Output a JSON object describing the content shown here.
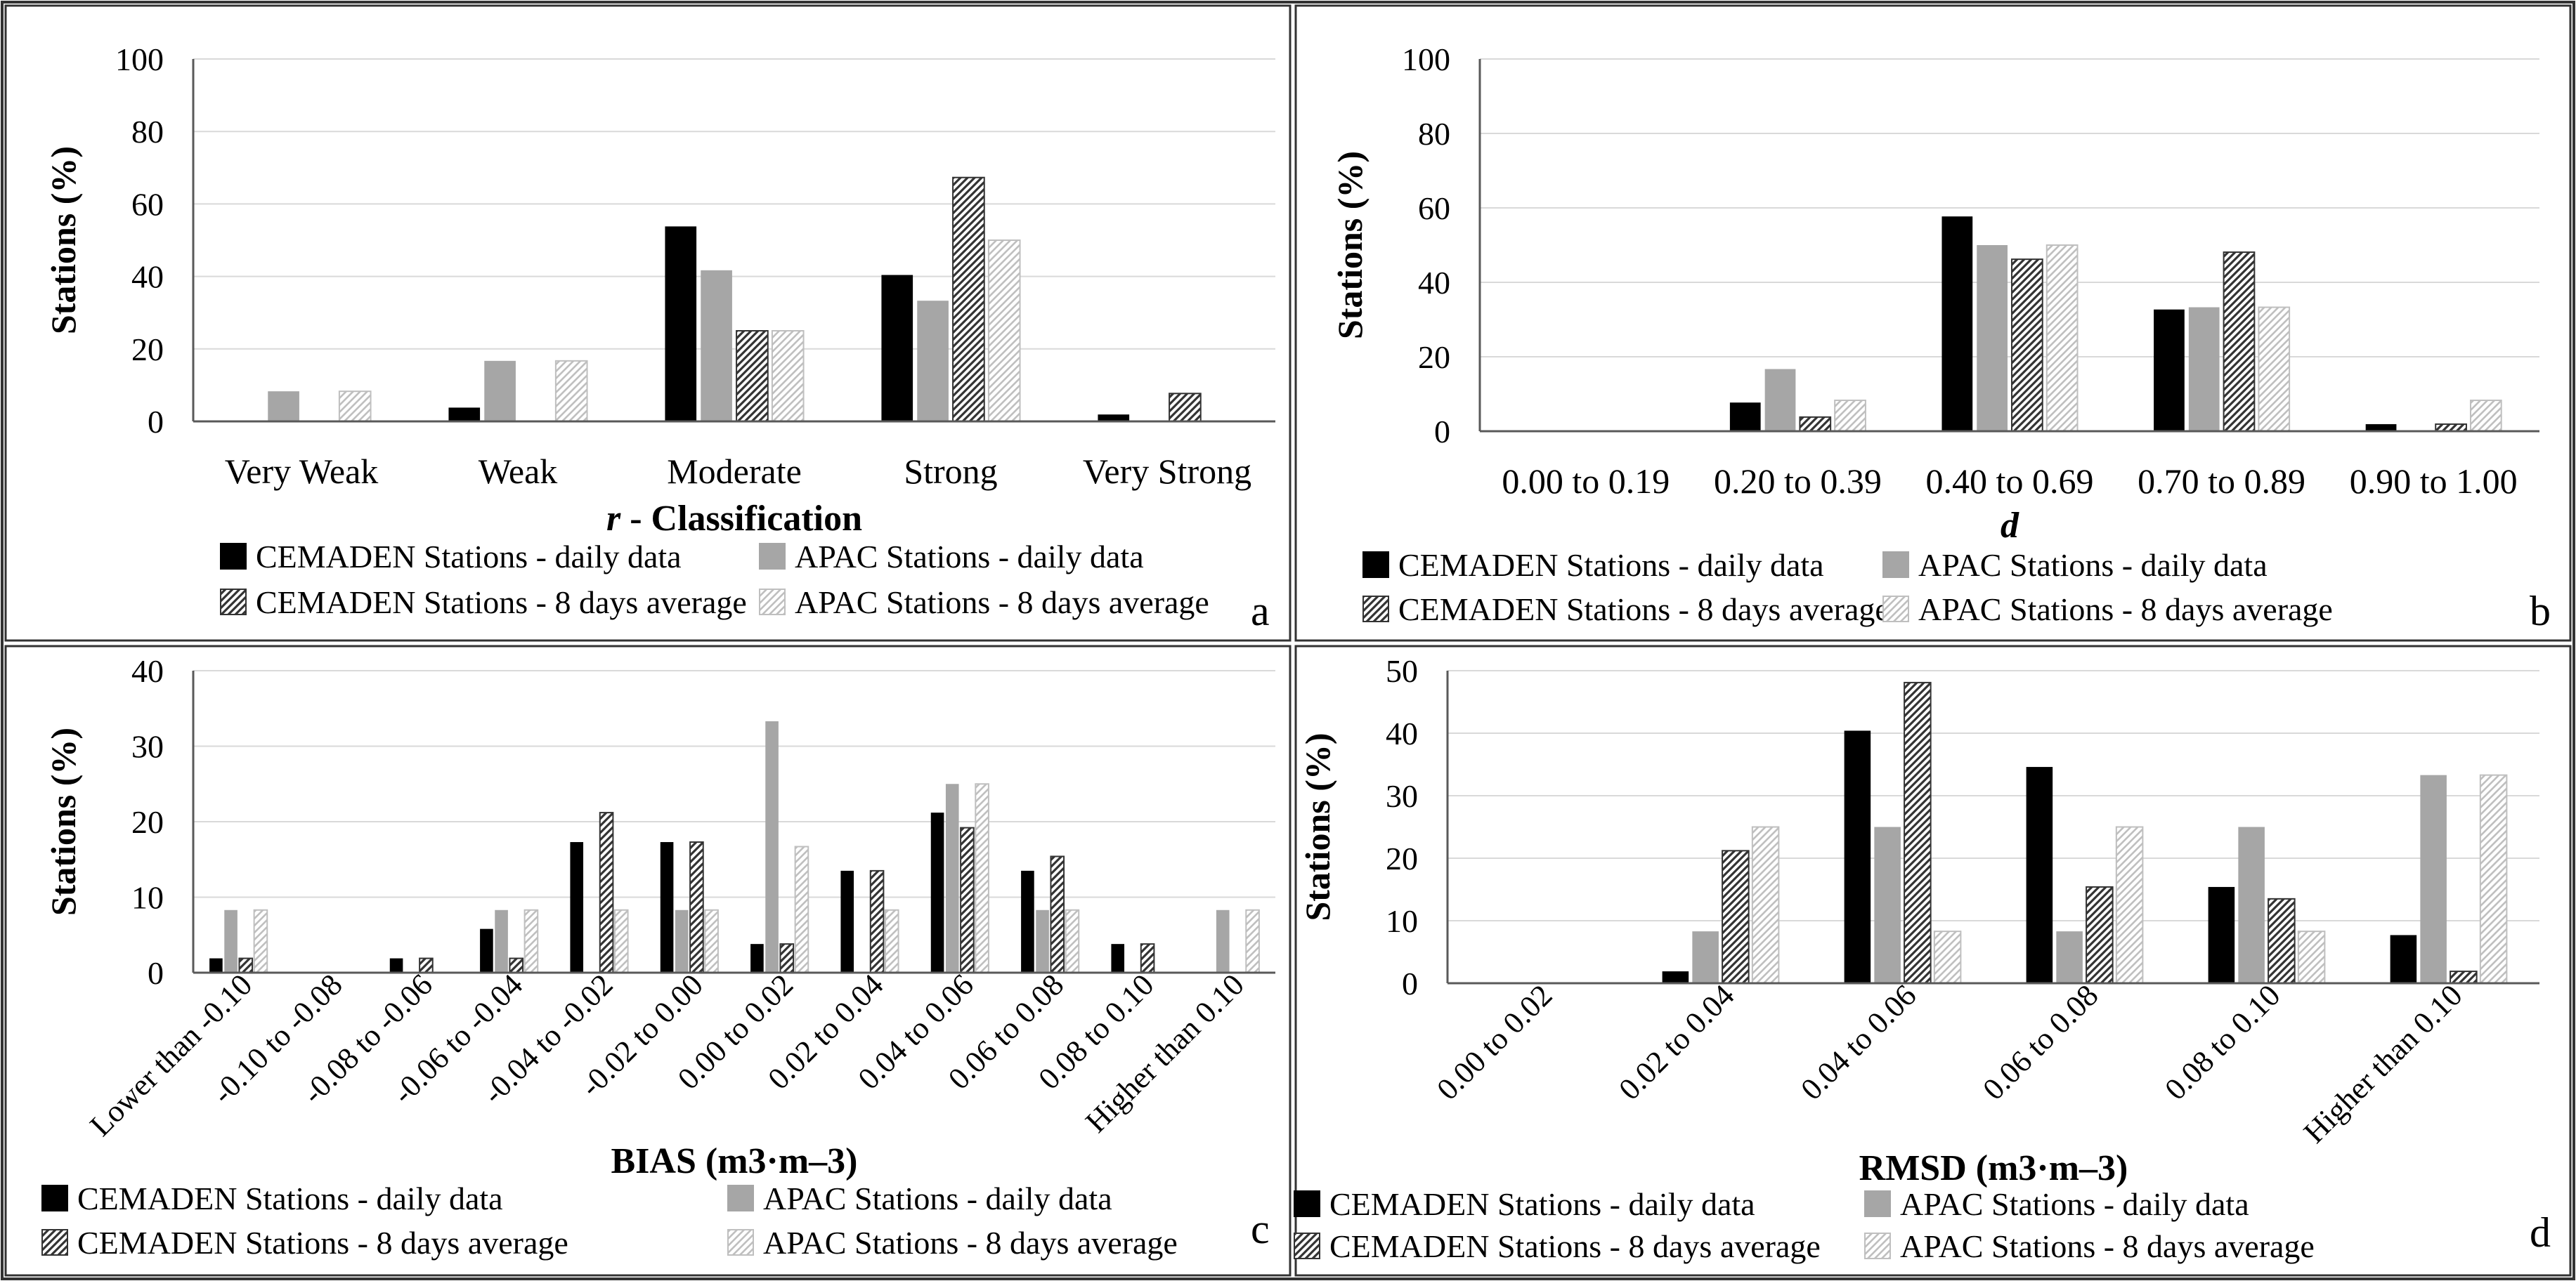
{
  "figure": {
    "colors": {
      "cemaden_daily": "#000000",
      "apac_daily": "#a6a6a6",
      "cemaden_8day": "#333333",
      "apac_8day": "#bfbfbf",
      "axis": "#595959",
      "grid": "#d9d9d9",
      "border": "#333333"
    }
  },
  "chart_data": [
    {
      "panel_letter": "a",
      "type": "bar",
      "xlabel_prefix": "r",
      "xlabel": " - Classification",
      "ylabel": "Stations (%)",
      "ylim": [
        0,
        100
      ],
      "yticks": [
        0,
        20,
        40,
        60,
        80,
        100
      ],
      "categories": [
        "Very Weak",
        "Weak",
        "Moderate",
        "Strong",
        "Very Strong"
      ],
      "series": [
        {
          "name": "CEMADEN Stations - daily data",
          "values": [
            0,
            3.8,
            53.8,
            40.4,
            1.9
          ]
        },
        {
          "name": "APAC Stations - daily data",
          "values": [
            8.3,
            16.7,
            41.7,
            33.3,
            0
          ]
        },
        {
          "name": "CEMADEN Stations - 8 days average",
          "values": [
            0,
            0,
            25.0,
            67.3,
            7.7
          ]
        },
        {
          "name": "APAC Stations - 8 days average",
          "values": [
            8.3,
            16.7,
            25.0,
            50.0,
            0
          ]
        }
      ]
    },
    {
      "panel_letter": "b",
      "type": "bar",
      "xlabel": "d",
      "ylabel": "Stations (%)",
      "ylim": [
        0,
        100
      ],
      "yticks": [
        0,
        20,
        40,
        60,
        80,
        100
      ],
      "categories": [
        "0.00 to 0.19",
        "0.20 to 0.39",
        "0.40 to 0.69",
        "0.70 to 0.89",
        "0.90 to 1.00"
      ],
      "series": [
        {
          "name": "CEMADEN Stations - daily data",
          "values": [
            0,
            7.7,
            57.7,
            32.7,
            1.9
          ]
        },
        {
          "name": "APAC Stations - daily data",
          "values": [
            0,
            16.7,
            50.0,
            33.3,
            0
          ]
        },
        {
          "name": "CEMADEN Stations - 8 days average",
          "values": [
            0,
            3.8,
            46.2,
            48.1,
            1.9
          ]
        },
        {
          "name": "APAC Stations - 8 days average",
          "values": [
            0,
            8.3,
            50.0,
            33.3,
            8.3
          ]
        }
      ]
    },
    {
      "panel_letter": "c",
      "type": "bar",
      "xlabel": "BIAS (m3·m–3)",
      "ylabel": "Stations (%)",
      "ylim": [
        0,
        40
      ],
      "yticks": [
        0,
        10,
        20,
        30,
        40
      ],
      "categories": [
        "Lower than -0.10",
        "-0.10 to -0.08",
        "-0.08 to -0.06",
        "-0.06 to -0.04",
        "-0.04 to -0.02",
        "-0.02 to 0.00",
        "0.00 to 0.02",
        "0.02 to 0.04",
        "0.04 to 0.06",
        "0.06 to 0.08",
        "0.08 to 0.10",
        "Higher than 0.10"
      ],
      "series": [
        {
          "name": "CEMADEN Stations - daily data",
          "values": [
            1.9,
            0,
            1.9,
            5.8,
            17.3,
            17.3,
            3.8,
            13.5,
            21.2,
            13.5,
            3.8,
            0
          ]
        },
        {
          "name": "APAC Stations - daily data",
          "values": [
            8.3,
            0,
            0,
            8.3,
            0,
            8.3,
            33.3,
            0,
            25.0,
            8.3,
            0,
            8.3
          ]
        },
        {
          "name": "CEMADEN Stations - 8 days average",
          "values": [
            1.9,
            0,
            1.9,
            1.9,
            21.2,
            17.3,
            3.8,
            13.5,
            19.2,
            15.4,
            3.8,
            0
          ]
        },
        {
          "name": "APAC Stations - 8 days average",
          "values": [
            8.3,
            0,
            0,
            8.3,
            8.3,
            8.3,
            16.7,
            8.3,
            25.0,
            8.3,
            0,
            8.3
          ]
        }
      ]
    },
    {
      "panel_letter": "d",
      "type": "bar",
      "xlabel": "RMSD (m3·m–3)",
      "ylabel": "Stations (%)",
      "ylim": [
        0,
        50
      ],
      "yticks": [
        0,
        10,
        20,
        30,
        40,
        50
      ],
      "categories": [
        "0.00 to 0.02",
        "0.02 to 0.04",
        "0.04 to 0.06",
        "0.06 to 0.08",
        "0.08 to 0.10",
        "Higher than 0.10"
      ],
      "series": [
        {
          "name": "CEMADEN Stations - daily data",
          "values": [
            0,
            1.9,
            40.4,
            34.6,
            15.4,
            7.7
          ]
        },
        {
          "name": "APAC Stations - daily data",
          "values": [
            0,
            8.3,
            25.0,
            8.3,
            25.0,
            33.3
          ]
        },
        {
          "name": "CEMADEN Stations - 8 days average",
          "values": [
            0,
            21.2,
            48.1,
            15.4,
            13.5,
            1.9
          ]
        },
        {
          "name": "APAC Stations - 8 days average",
          "values": [
            0,
            25.0,
            8.3,
            25.0,
            8.3,
            33.3
          ]
        }
      ]
    }
  ]
}
